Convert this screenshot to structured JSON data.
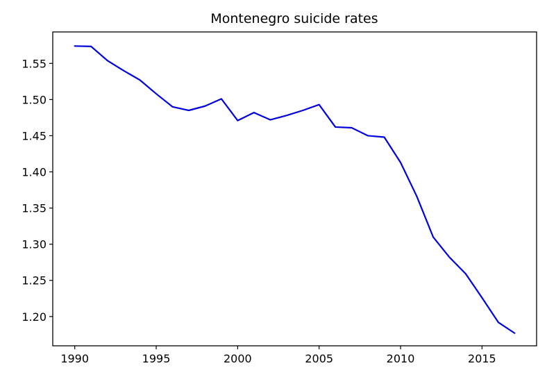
{
  "chart_data": {
    "type": "line",
    "title": "Montenegro suicide rates",
    "xlabel": "",
    "ylabel": "",
    "xlim": [
      1988.65,
      2018.35
    ],
    "ylim": [
      1.1595,
      1.5935
    ],
    "x_ticks": [
      1990,
      1995,
      2000,
      2005,
      2010,
      2015
    ],
    "y_ticks": [
      "1.20",
      "1.25",
      "1.30",
      "1.35",
      "1.40",
      "1.45",
      "1.50",
      "1.55"
    ],
    "grid": false,
    "legend": "none",
    "series": [
      {
        "color": "#0000dd",
        "x": [
          1990,
          1991,
          1992,
          1993,
          1994,
          1995,
          1996,
          1997,
          1998,
          1999,
          2000,
          2001,
          2002,
          2003,
          2004,
          2005,
          2006,
          2007,
          2008,
          2009,
          2010,
          2011,
          2012,
          2013,
          2014,
          2015,
          2016,
          2017
        ],
        "y": [
          1.574,
          1.5735,
          1.554,
          1.54,
          1.527,
          1.508,
          1.49,
          1.485,
          1.491,
          1.501,
          1.471,
          1.482,
          1.472,
          1.478,
          1.485,
          1.493,
          1.462,
          1.461,
          1.45,
          1.448,
          1.413,
          1.366,
          1.31,
          1.282,
          1.259,
          1.226,
          1.192,
          1.177
        ]
      }
    ]
  }
}
